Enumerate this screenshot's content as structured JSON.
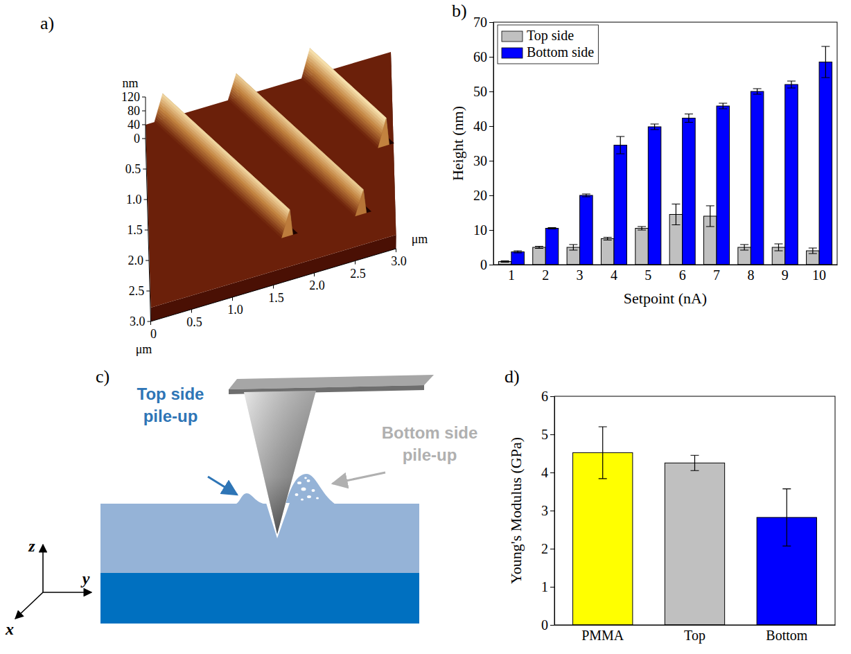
{
  "chart_data": [
    {
      "panel_label": "a)",
      "type": "surface3d",
      "x_label": "μm",
      "y_label": "μm",
      "z_label": "nm",
      "xlim": [
        0,
        3
      ],
      "ylim": [
        0,
        3
      ],
      "zlim": [
        0,
        120
      ],
      "xticks": [
        0,
        0.5,
        {
          "value": 1,
          "label": "1.0"
        },
        1.5,
        {
          "value": 2,
          "label": "2.0"
        },
        2.5,
        {
          "value": 3,
          "label": "3.0"
        }
      ],
      "yticks": [
        0.5,
        {
          "value": 1,
          "label": "1.0"
        },
        1.5,
        {
          "value": 2,
          "label": "2.0"
        },
        2.5,
        {
          "value": 3,
          "label": "3.0"
        }
      ],
      "zticks": [
        0,
        40,
        80,
        120
      ],
      "surface_height": 40,
      "scratches": [
        {
          "start": [
            0.25,
            0
          ],
          "end": [
            1.75,
            2.5
          ],
          "pileup_height": 115
        },
        {
          "start": [
            1.15,
            0
          ],
          "end": [
            2.65,
            2.5
          ],
          "pileup_height": 110
        },
        {
          "start": [
            2.05,
            0
          ],
          "end": [
            2.95,
            1.5
          ],
          "pileup_height": 120
        }
      ]
    },
    {
      "panel_label": "b)",
      "type": "bar",
      "x_label": "Setpoint (nA)",
      "y_label": "Height (nm)",
      "categories": [
        "1",
        "2",
        "3",
        "4",
        "5",
        "6",
        "7",
        "8",
        "9",
        "10"
      ],
      "series": [
        {
          "name": "Top side",
          "color": "#c0c0c0",
          "values": [
            0.9,
            5,
            5,
            7.5,
            10.5,
            14.5,
            14,
            5,
            5,
            4
          ],
          "errors": [
            0.2,
            0.3,
            0.8,
            0.4,
            0.5,
            3,
            3,
            0.8,
            1,
            0.8
          ]
        },
        {
          "name": "Bottom side",
          "color": "#0000ff",
          "values": [
            3.7,
            10.5,
            20,
            34.5,
            39.8,
            42.3,
            45.8,
            50,
            52,
            58.5
          ],
          "errors": [
            0.3,
            0.2,
            0.4,
            2.5,
            0.8,
            1.2,
            0.8,
            0.8,
            1,
            4.5
          ]
        }
      ],
      "ylim": [
        0,
        70
      ],
      "yticks": [
        0,
        10,
        20,
        30,
        40,
        50,
        60,
        70
      ],
      "legend": "top-left"
    },
    {
      "panel_label": "d)",
      "type": "bar",
      "y_label": "Young's Modulus (GPa)",
      "categories": [
        "PMMA",
        "Top",
        "Bottom"
      ],
      "values": [
        4.52,
        4.25,
        2.82
      ],
      "errors": [
        0.68,
        0.2,
        0.75
      ],
      "colors": [
        "#ffff00",
        "#c0c0c0",
        "#0000ff"
      ],
      "ylim": [
        0,
        6
      ],
      "yticks": [
        0,
        1,
        2,
        3,
        4,
        5,
        6
      ]
    }
  ],
  "diagram": {
    "panel_label": "c)",
    "annotations": [
      {
        "text": "Top side pile-up",
        "color": "#2e75b6"
      },
      {
        "text": "Bottom side pile-up",
        "color": "#b0b0b0"
      }
    ],
    "axes": [
      "z",
      "y",
      "x"
    ]
  }
}
